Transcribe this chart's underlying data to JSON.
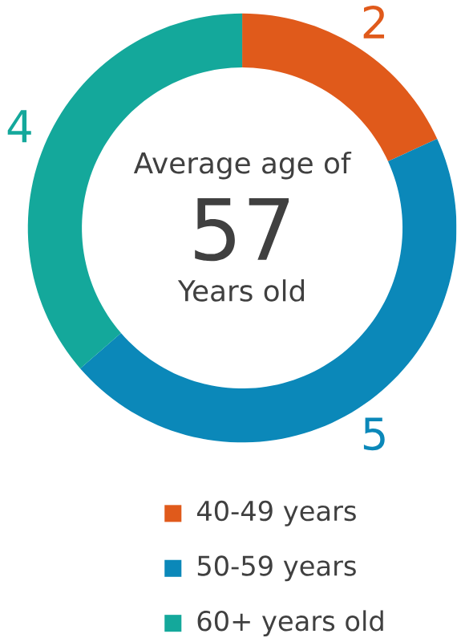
{
  "chart_data": {
    "type": "donut",
    "categories": [
      "40-49 years",
      "50-59 years",
      "60+ years old"
    ],
    "values": [
      2,
      5,
      4
    ],
    "colors": [
      "#e05a1b",
      "#0b88b9",
      "#14a89b"
    ],
    "data_labels": true,
    "legend": "bottom",
    "annotations": [
      "Average age of",
      "57",
      "Years old"
    ]
  }
}
